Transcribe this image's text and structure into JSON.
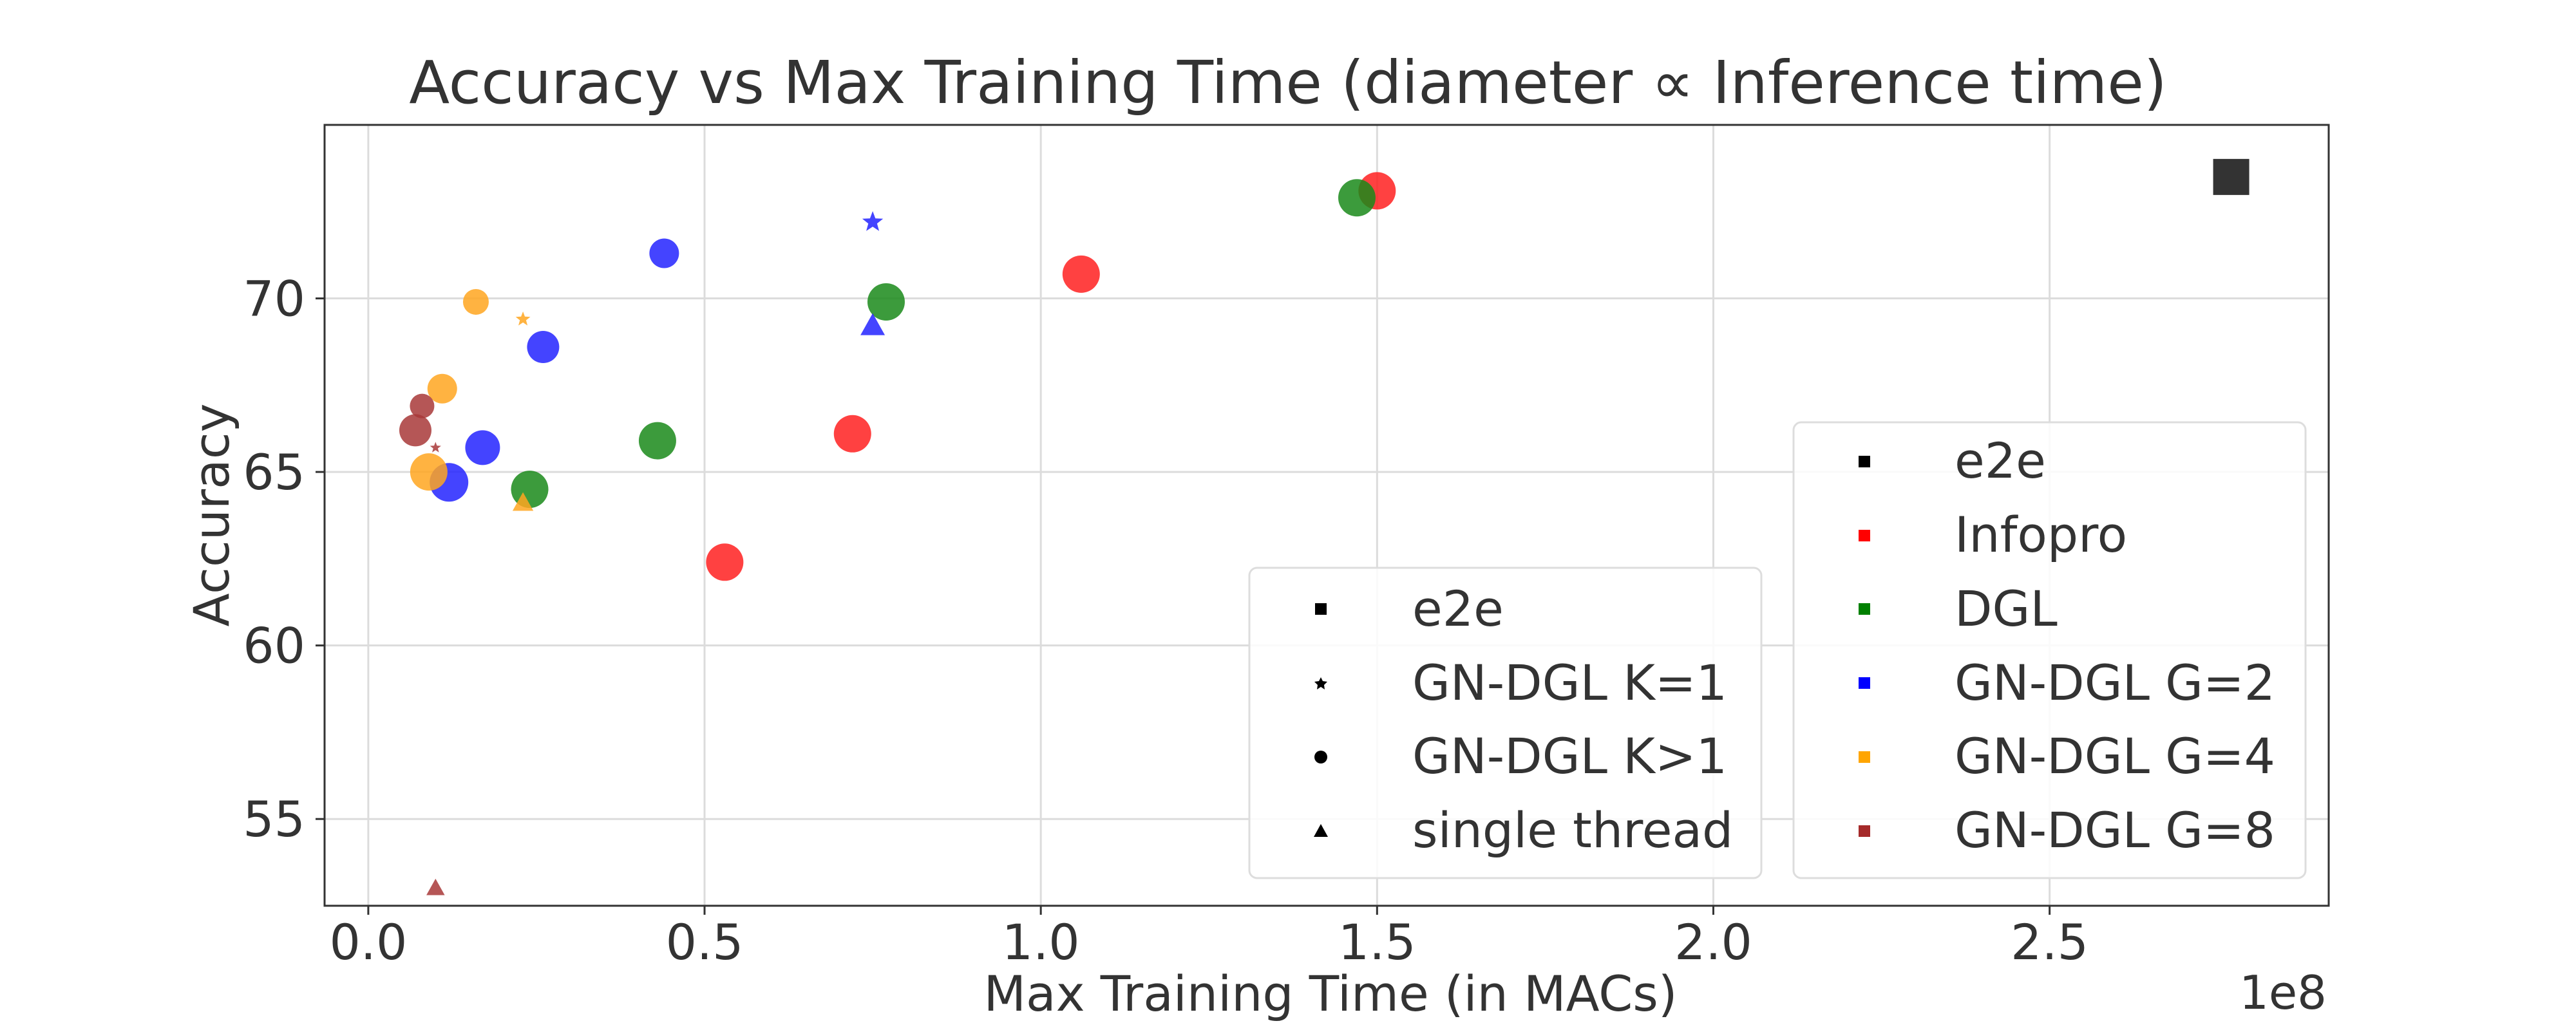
{
  "chart_data": {
    "type": "scatter",
    "title": "Accuracy vs Max Training Time (diameter ∝ Inference time)",
    "xlabel": "Max Training Time (in MACs)",
    "ylabel": "Accuracy",
    "x_scale_label": "1e8",
    "x_unit_multiplier": 100000000,
    "xlim": [
      -0.065,
      2.915
    ],
    "ylim": [
      52.5,
      75.0
    ],
    "x_ticks": [
      0.0,
      0.5,
      1.0,
      1.5,
      2.0,
      2.5
    ],
    "x_tick_labels": [
      "0.0",
      "0.5",
      "1.0",
      "1.5",
      "2.0",
      "2.5"
    ],
    "y_ticks": [
      55,
      60,
      65,
      70
    ],
    "y_tick_labels": [
      "55",
      "60",
      "65",
      "70"
    ],
    "grid": true,
    "colors": {
      "e2e": "#333333",
      "Infopro": "#ff2020",
      "DGL": "#1a8a1a",
      "GN-DGL G=2": "#2323ff",
      "GN-DGL G=4": "#ffa620",
      "GN-DGL G=8": "#a83838"
    },
    "series": [
      {
        "name": "e2e",
        "points": [
          {
            "x": 2.77,
            "y": 73.5,
            "marker": "square",
            "size": 56
          }
        ]
      },
      {
        "name": "Infopro",
        "points": [
          {
            "x": 1.5,
            "y": 73.1,
            "marker": "circle",
            "size": 58
          },
          {
            "x": 1.06,
            "y": 70.7,
            "marker": "circle",
            "size": 58
          },
          {
            "x": 0.72,
            "y": 66.1,
            "marker": "circle",
            "size": 58
          },
          {
            "x": 0.53,
            "y": 62.4,
            "marker": "circle",
            "size": 58
          }
        ]
      },
      {
        "name": "DGL",
        "points": [
          {
            "x": 1.47,
            "y": 72.9,
            "marker": "circle",
            "size": 58
          },
          {
            "x": 0.77,
            "y": 69.9,
            "marker": "circle",
            "size": 58
          },
          {
            "x": 0.43,
            "y": 65.9,
            "marker": "circle",
            "size": 58
          },
          {
            "x": 0.24,
            "y": 64.5,
            "marker": "circle",
            "size": 58
          }
        ]
      },
      {
        "name": "GN-DGL G=2",
        "points": [
          {
            "x": 0.75,
            "y": 72.2,
            "marker": "star",
            "size": 34
          },
          {
            "x": 0.44,
            "y": 71.3,
            "marker": "circle",
            "size": 46
          },
          {
            "x": 0.26,
            "y": 68.6,
            "marker": "circle",
            "size": 50
          },
          {
            "x": 0.75,
            "y": 69.2,
            "marker": "triangle",
            "size": 40
          },
          {
            "x": 0.17,
            "y": 65.7,
            "marker": "circle",
            "size": 54
          },
          {
            "x": 0.12,
            "y": 64.7,
            "marker": "circle",
            "size": 60
          }
        ]
      },
      {
        "name": "GN-DGL G=4",
        "points": [
          {
            "x": 0.23,
            "y": 69.4,
            "marker": "star",
            "size": 24
          },
          {
            "x": 0.16,
            "y": 69.9,
            "marker": "circle",
            "size": 40
          },
          {
            "x": 0.11,
            "y": 67.4,
            "marker": "circle",
            "size": 46
          },
          {
            "x": 0.09,
            "y": 65.0,
            "marker": "circle",
            "size": 58
          },
          {
            "x": 0.23,
            "y": 64.1,
            "marker": "triangle",
            "size": 34
          }
        ]
      },
      {
        "name": "GN-DGL G=8",
        "points": [
          {
            "x": 0.1,
            "y": 65.7,
            "marker": "star",
            "size": 18
          },
          {
            "x": 0.08,
            "y": 66.9,
            "marker": "circle",
            "size": 38
          },
          {
            "x": 0.07,
            "y": 66.2,
            "marker": "circle",
            "size": 50
          },
          {
            "x": 0.1,
            "y": 53.0,
            "marker": "triangle",
            "size": 30
          }
        ]
      }
    ],
    "legend_markers": {
      "title": "",
      "placement": "lower-center",
      "entries": [
        {
          "label": "e2e",
          "marker": "square"
        },
        {
          "label": "GN-DGL K=1",
          "marker": "star"
        },
        {
          "label": "GN-DGL K>1",
          "marker": "circle"
        },
        {
          "label": "single thread",
          "marker": "triangle"
        }
      ]
    },
    "legend_colors": {
      "placement": "lower-right",
      "entries": [
        {
          "label": "e2e",
          "color": "#000000"
        },
        {
          "label": "Infopro",
          "color": "#ff0000"
        },
        {
          "label": "DGL",
          "color": "#008000"
        },
        {
          "label": "GN-DGL G=2",
          "color": "#0000ff"
        },
        {
          "label": "GN-DGL G=4",
          "color": "#ffa500"
        },
        {
          "label": "GN-DGL G=8",
          "color": "#a52a2a"
        }
      ]
    }
  }
}
